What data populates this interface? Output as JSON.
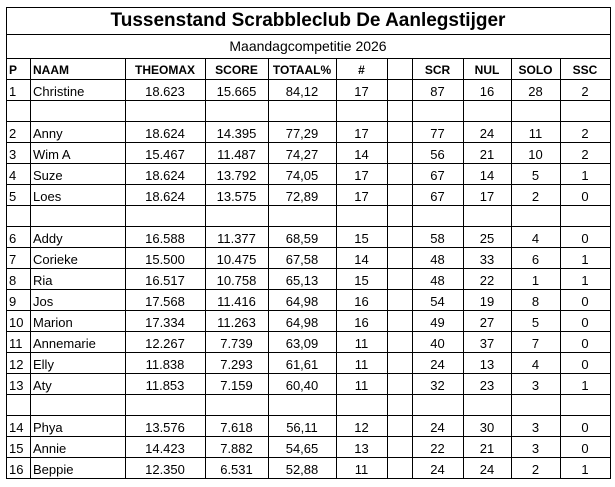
{
  "title": "Tussenstand Scrabbleclub De Aanlegstijger",
  "subtitle": "Maandagcompetitie 2026",
  "headers": {
    "p": "P",
    "naam": "NAAM",
    "theomax": "THEOMAX",
    "score": "SCORE",
    "totaal": "TOTAAL%",
    "count": "#",
    "scr": "SCR",
    "nul": "NUL",
    "solo": "SOLO",
    "ssc": "SSC"
  },
  "rows": [
    [
      "1",
      "Christine",
      "18.623",
      "15.665",
      "84,12",
      "17",
      "87",
      "16",
      "28",
      "2"
    ],
    null,
    [
      "2",
      "Anny",
      "18.624",
      "14.395",
      "77,29",
      "17",
      "77",
      "24",
      "11",
      "2"
    ],
    [
      "3",
      "Wim A",
      "15.467",
      "11.487",
      "74,27",
      "14",
      "56",
      "21",
      "10",
      "2"
    ],
    [
      "4",
      "Suze",
      "18.624",
      "13.792",
      "74,05",
      "17",
      "67",
      "14",
      "5",
      "1"
    ],
    [
      "5",
      "Loes",
      "18.624",
      "13.575",
      "72,89",
      "17",
      "67",
      "17",
      "2",
      "0"
    ],
    null,
    [
      "6",
      "Addy",
      "16.588",
      "11.377",
      "68,59",
      "15",
      "58",
      "25",
      "4",
      "0"
    ],
    [
      "7",
      "Corieke",
      "15.500",
      "10.475",
      "67,58",
      "14",
      "48",
      "33",
      "6",
      "1"
    ],
    [
      "8",
      "Ria",
      "16.517",
      "10.758",
      "65,13",
      "15",
      "48",
      "22",
      "1",
      "1"
    ],
    [
      "9",
      "Jos",
      "17.568",
      "11.416",
      "64,98",
      "16",
      "54",
      "19",
      "8",
      "0"
    ],
    [
      "10",
      "Marion",
      "17.334",
      "11.263",
      "64,98",
      "16",
      "49",
      "27",
      "5",
      "0"
    ],
    [
      "11",
      "Annemarie",
      "12.267",
      "7.739",
      "63,09",
      "11",
      "40",
      "37",
      "7",
      "0"
    ],
    [
      "12",
      "Elly",
      "11.838",
      "7.293",
      "61,61",
      "11",
      "24",
      "13",
      "4",
      "0"
    ],
    [
      "13",
      "Aty",
      "11.853",
      "7.159",
      "60,40",
      "11",
      "32",
      "23",
      "3",
      "1"
    ],
    null,
    [
      "14",
      "Phya",
      "13.576",
      "7.618",
      "56,11",
      "12",
      "24",
      "30",
      "3",
      "0"
    ],
    [
      "15",
      "Annie",
      "14.423",
      "7.882",
      "54,65",
      "13",
      "22",
      "21",
      "3",
      "0"
    ],
    [
      "16",
      "Beppie",
      "12.350",
      "6.531",
      "52,88",
      "11",
      "24",
      "24",
      "2",
      "1"
    ]
  ]
}
